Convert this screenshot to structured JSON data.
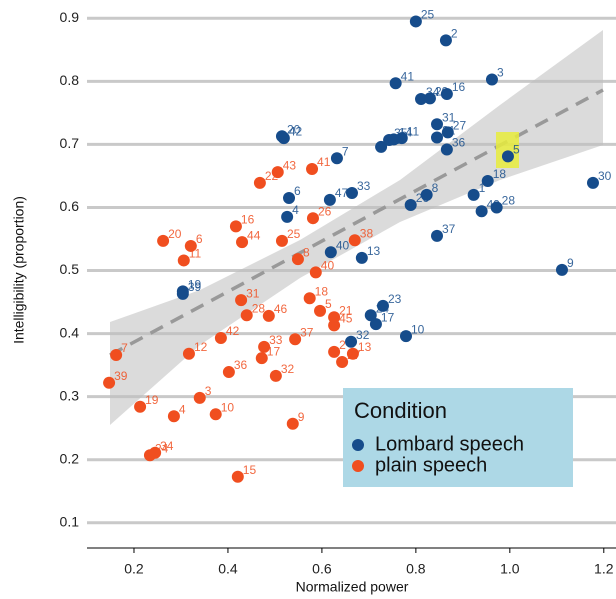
{
  "chart_data": {
    "type": "scatter",
    "x_label": "Normalized power",
    "y_label": "Intelligibility (proportion)",
    "xlim": [
      0.1,
      1.226
    ],
    "ylim": [
      0.06,
      0.929
    ],
    "xticks": [
      0.2,
      0.4,
      0.6,
      0.8,
      {
        "value": 1.0,
        "label": "1.0"
      },
      1.2
    ],
    "yticks": [
      0.1,
      0.2,
      0.3,
      0.4,
      0.5,
      0.6,
      0.7,
      0.8,
      0.9
    ],
    "grid": true,
    "legend": {
      "title": "Condition",
      "position": "lower right"
    },
    "series": [
      {
        "name": "Lombard speech",
        "color": "#164c8b",
        "x": [
          0.8,
          0.864,
          0.757,
          0.962,
          0.811,
          0.83,
          0.866,
          0.845,
          0.868,
          0.845,
          0.866,
          0.996,
          1.177,
          0.953,
          0.923,
          0.94,
          0.972,
          1.111,
          0.515,
          0.519,
          0.632,
          0.726,
          0.743,
          0.753,
          0.77,
          0.53,
          0.526,
          0.617,
          0.664,
          0.823,
          0.789,
          0.845,
          0.619,
          0.685,
          0.779,
          0.73,
          0.715,
          0.704,
          0.662,
          0.304,
          0.304
        ],
        "values": [
          0.895,
          0.865,
          0.797,
          0.803,
          0.772,
          0.773,
          0.78,
          0.732,
          0.719,
          0.711,
          0.692,
          0.681,
          0.639,
          0.642,
          0.62,
          0.594,
          0.6,
          0.501,
          0.713,
          0.71,
          0.678,
          0.696,
          0.707,
          0.708,
          0.71,
          0.615,
          0.585,
          0.612,
          0.623,
          0.62,
          0.604,
          0.555,
          0.529,
          0.52,
          0.396,
          0.444,
          0.415,
          0.429,
          0.387,
          0.467,
          0.463
        ],
        "labels": [
          "25",
          "2",
          "41",
          "3",
          "34",
          "29",
          "16",
          "31",
          "27",
          "21",
          "36",
          "5",
          "30",
          "18",
          "1",
          "49",
          "28",
          "9",
          "20",
          "42",
          "7",
          "12",
          "35",
          "14",
          "11",
          "6",
          "4",
          "47",
          "33",
          "8",
          "26",
          "37",
          "40",
          "13",
          "10",
          "23",
          "17",
          "24",
          "32",
          "19",
          "39"
        ]
      },
      {
        "name": "plain speech",
        "color": "#f04e1f",
        "x": [
          0.506,
          0.468,
          0.579,
          0.581,
          0.67,
          0.262,
          0.321,
          0.306,
          0.417,
          0.43,
          0.515,
          0.549,
          0.587,
          0.574,
          0.596,
          0.626,
          0.626,
          0.428,
          0.44,
          0.487,
          0.385,
          0.317,
          0.477,
          0.472,
          0.543,
          0.626,
          0.666,
          0.643,
          0.402,
          0.502,
          0.162,
          0.147,
          0.213,
          0.285,
          0.34,
          0.374,
          0.538,
          0.234,
          0.245,
          0.421
        ],
        "values": [
          0.656,
          0.639,
          0.661,
          0.583,
          0.548,
          0.547,
          0.539,
          0.516,
          0.57,
          0.545,
          0.547,
          0.518,
          0.497,
          0.456,
          0.436,
          0.426,
          0.413,
          0.453,
          0.429,
          0.428,
          0.393,
          0.368,
          0.379,
          0.361,
          0.391,
          0.371,
          0.368,
          0.355,
          0.339,
          0.333,
          0.366,
          0.322,
          0.284,
          0.269,
          0.298,
          0.272,
          0.257,
          0.207,
          0.211,
          0.173
        ],
        "labels": [
          "43",
          "22",
          "41",
          "26",
          "38",
          "20",
          "6",
          "11",
          "16",
          "44",
          "25",
          "8",
          "40",
          "18",
          "5",
          "21",
          "45",
          "31",
          "28",
          "46",
          "42",
          "12",
          "33",
          "17",
          "37",
          "2",
          "13",
          "27",
          "36",
          "32",
          "7",
          "39",
          "19",
          "4",
          "3",
          "10",
          "9",
          "24",
          "34",
          "15"
        ]
      }
    ]
  }
}
